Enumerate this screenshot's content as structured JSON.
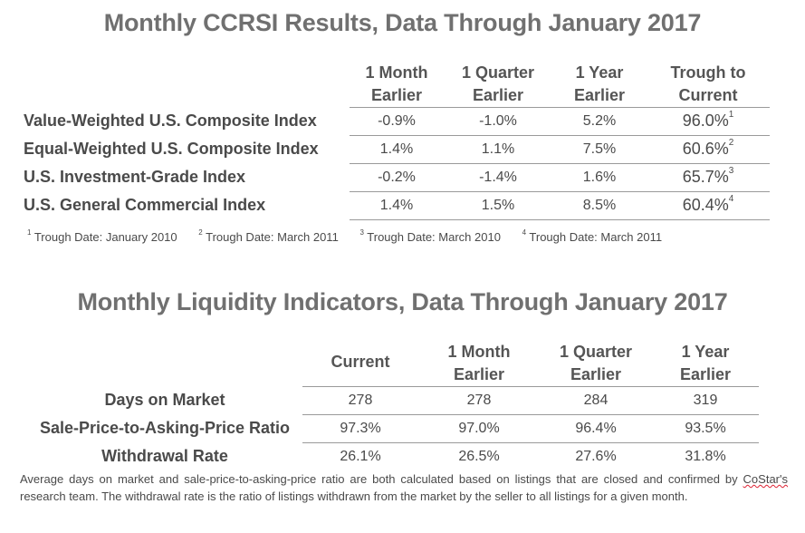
{
  "ccrsi": {
    "title": "Monthly CCRSI Results, Data Through January 2017",
    "headers": [
      {
        "line1": "1 Month",
        "line2": "Earlier"
      },
      {
        "line1": "1 Quarter",
        "line2": "Earlier"
      },
      {
        "line1": "1 Year",
        "line2": "Earlier"
      },
      {
        "line1": "Trough to",
        "line2": "Current"
      }
    ],
    "rows": [
      {
        "label": "Value-Weighted U.S. Composite Index",
        "m1": "-0.9%",
        "q1": "-1.0%",
        "y1": "5.2%",
        "trough": "96.0%",
        "sup": "1"
      },
      {
        "label": "Equal-Weighted U.S. Composite Index",
        "m1": "1.4%",
        "q1": "1.1%",
        "y1": "7.5%",
        "trough": "60.6%",
        "sup": "2"
      },
      {
        "label": "U.S. Investment-Grade Index",
        "m1": "-0.2%",
        "q1": "-1.4%",
        "y1": "1.6%",
        "trough": "65.7%",
        "sup": "3"
      },
      {
        "label": "U.S. General Commercial Index",
        "m1": "1.4%",
        "q1": "1.5%",
        "y1": "8.5%",
        "trough": "60.4%",
        "sup": "4"
      }
    ],
    "notes": [
      {
        "sup": "1",
        "text": "Trough Date: January 2010"
      },
      {
        "sup": "2",
        "text": "Trough Date: March 2011"
      },
      {
        "sup": "3",
        "text": "Trough Date: March 2010"
      },
      {
        "sup": "4",
        "text": "Trough Date: March 2011"
      }
    ]
  },
  "liquidity": {
    "title": "Monthly Liquidity Indicators, Data Through January 2017",
    "headers": [
      {
        "line1": "",
        "line2": "Current"
      },
      {
        "line1": "1 Month",
        "line2": "Earlier"
      },
      {
        "line1": "1 Quarter",
        "line2": "Earlier"
      },
      {
        "line1": "1 Year",
        "line2": "Earlier"
      }
    ],
    "rows": [
      {
        "label": "Days on Market",
        "current": "278",
        "m1": "278",
        "q1": "284",
        "y1": "319"
      },
      {
        "label": "Sale-Price-to-Asking-Price Ratio",
        "current": "97.3%",
        "m1": "97.0%",
        "q1": "96.4%",
        "y1": "93.5%"
      },
      {
        "label": "Withdrawal Rate",
        "current": "26.1%",
        "m1": "26.5%",
        "q1": "27.6%",
        "y1": "31.8%"
      }
    ]
  },
  "footnote": {
    "part1": "Average days on market and sale-price-to-asking-price ratio are both calculated based on listings that are closed and confirmed by ",
    "brand": "CoStar's",
    "part2": " research team. The withdrawal rate is the ratio of listings withdrawn from the market by the seller to all listings for a given month."
  }
}
